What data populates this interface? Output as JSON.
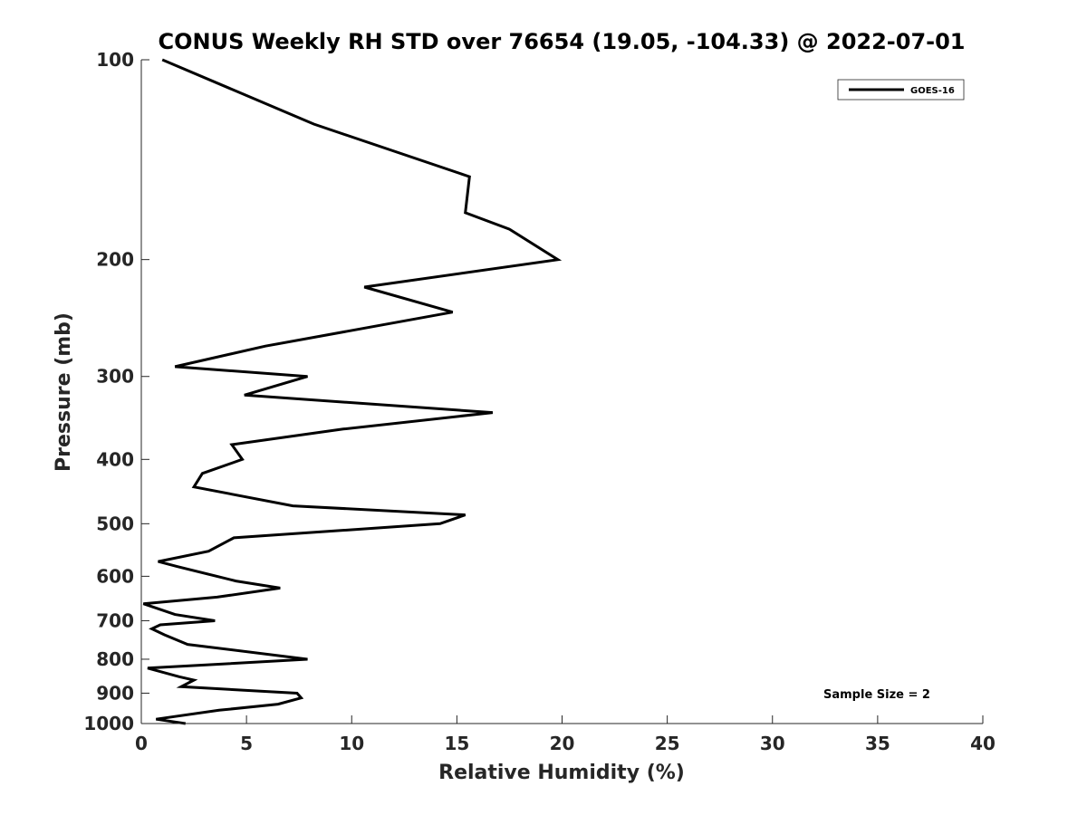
{
  "chart_data": {
    "type": "line",
    "title": "CONUS Weekly RH STD over 76654 (19.05, -104.33) @ 2022-07-01",
    "xlabel": "Relative Humidity (%)",
    "ylabel": "Pressure (mb)",
    "xlim": [
      0,
      40
    ],
    "ylim": [
      100,
      1000
    ],
    "yscale": "log",
    "y_reversed": true,
    "grid": false,
    "xticks": [
      0,
      5,
      10,
      15,
      20,
      25,
      30,
      35,
      40
    ],
    "xtick_labels": [
      "0",
      "5",
      "10",
      "15",
      "20",
      "25",
      "30",
      "35",
      "40"
    ],
    "yticks": [
      100,
      200,
      300,
      400,
      500,
      600,
      700,
      800,
      900,
      1000
    ],
    "ytick_labels": [
      "100",
      "200",
      "300",
      "400",
      "500",
      "600",
      "700",
      "800",
      "900",
      "1000"
    ],
    "legend": {
      "entries": [
        "GOES-16"
      ],
      "position": "top-right"
    },
    "annotation": "Sample Size = 2",
    "series": [
      {
        "name": "GOES-16",
        "color": "#000000",
        "points": [
          [
            1.0,
            100
          ],
          [
            8.2,
            125
          ],
          [
            15.6,
            150
          ],
          [
            15.4,
            170
          ],
          [
            17.5,
            180
          ],
          [
            19.8,
            200
          ],
          [
            10.6,
            220
          ],
          [
            14.8,
            240
          ],
          [
            5.9,
            270
          ],
          [
            1.6,
            290
          ],
          [
            7.9,
            300
          ],
          [
            4.9,
            320
          ],
          [
            16.7,
            340
          ],
          [
            9.6,
            360
          ],
          [
            4.3,
            380
          ],
          [
            4.8,
            400
          ],
          [
            2.9,
            420
          ],
          [
            2.5,
            440
          ],
          [
            7.2,
            470
          ],
          [
            15.4,
            485
          ],
          [
            14.2,
            500
          ],
          [
            4.4,
            525
          ],
          [
            3.2,
            550
          ],
          [
            0.8,
            570
          ],
          [
            1.7,
            580
          ],
          [
            4.5,
            610
          ],
          [
            6.6,
            625
          ],
          [
            3.6,
            645
          ],
          [
            0.1,
            660
          ],
          [
            1.6,
            685
          ],
          [
            3.5,
            700
          ],
          [
            0.9,
            710
          ],
          [
            0.5,
            720
          ],
          [
            1.1,
            735
          ],
          [
            2.2,
            760
          ],
          [
            7.9,
            800
          ],
          [
            0.3,
            825
          ],
          [
            1.8,
            850
          ],
          [
            2.5,
            860
          ],
          [
            1.9,
            880
          ],
          [
            7.4,
            900
          ],
          [
            7.6,
            915
          ],
          [
            6.5,
            935
          ],
          [
            3.7,
            955
          ],
          [
            0.7,
            985
          ],
          [
            2.1,
            1000
          ]
        ]
      }
    ]
  }
}
